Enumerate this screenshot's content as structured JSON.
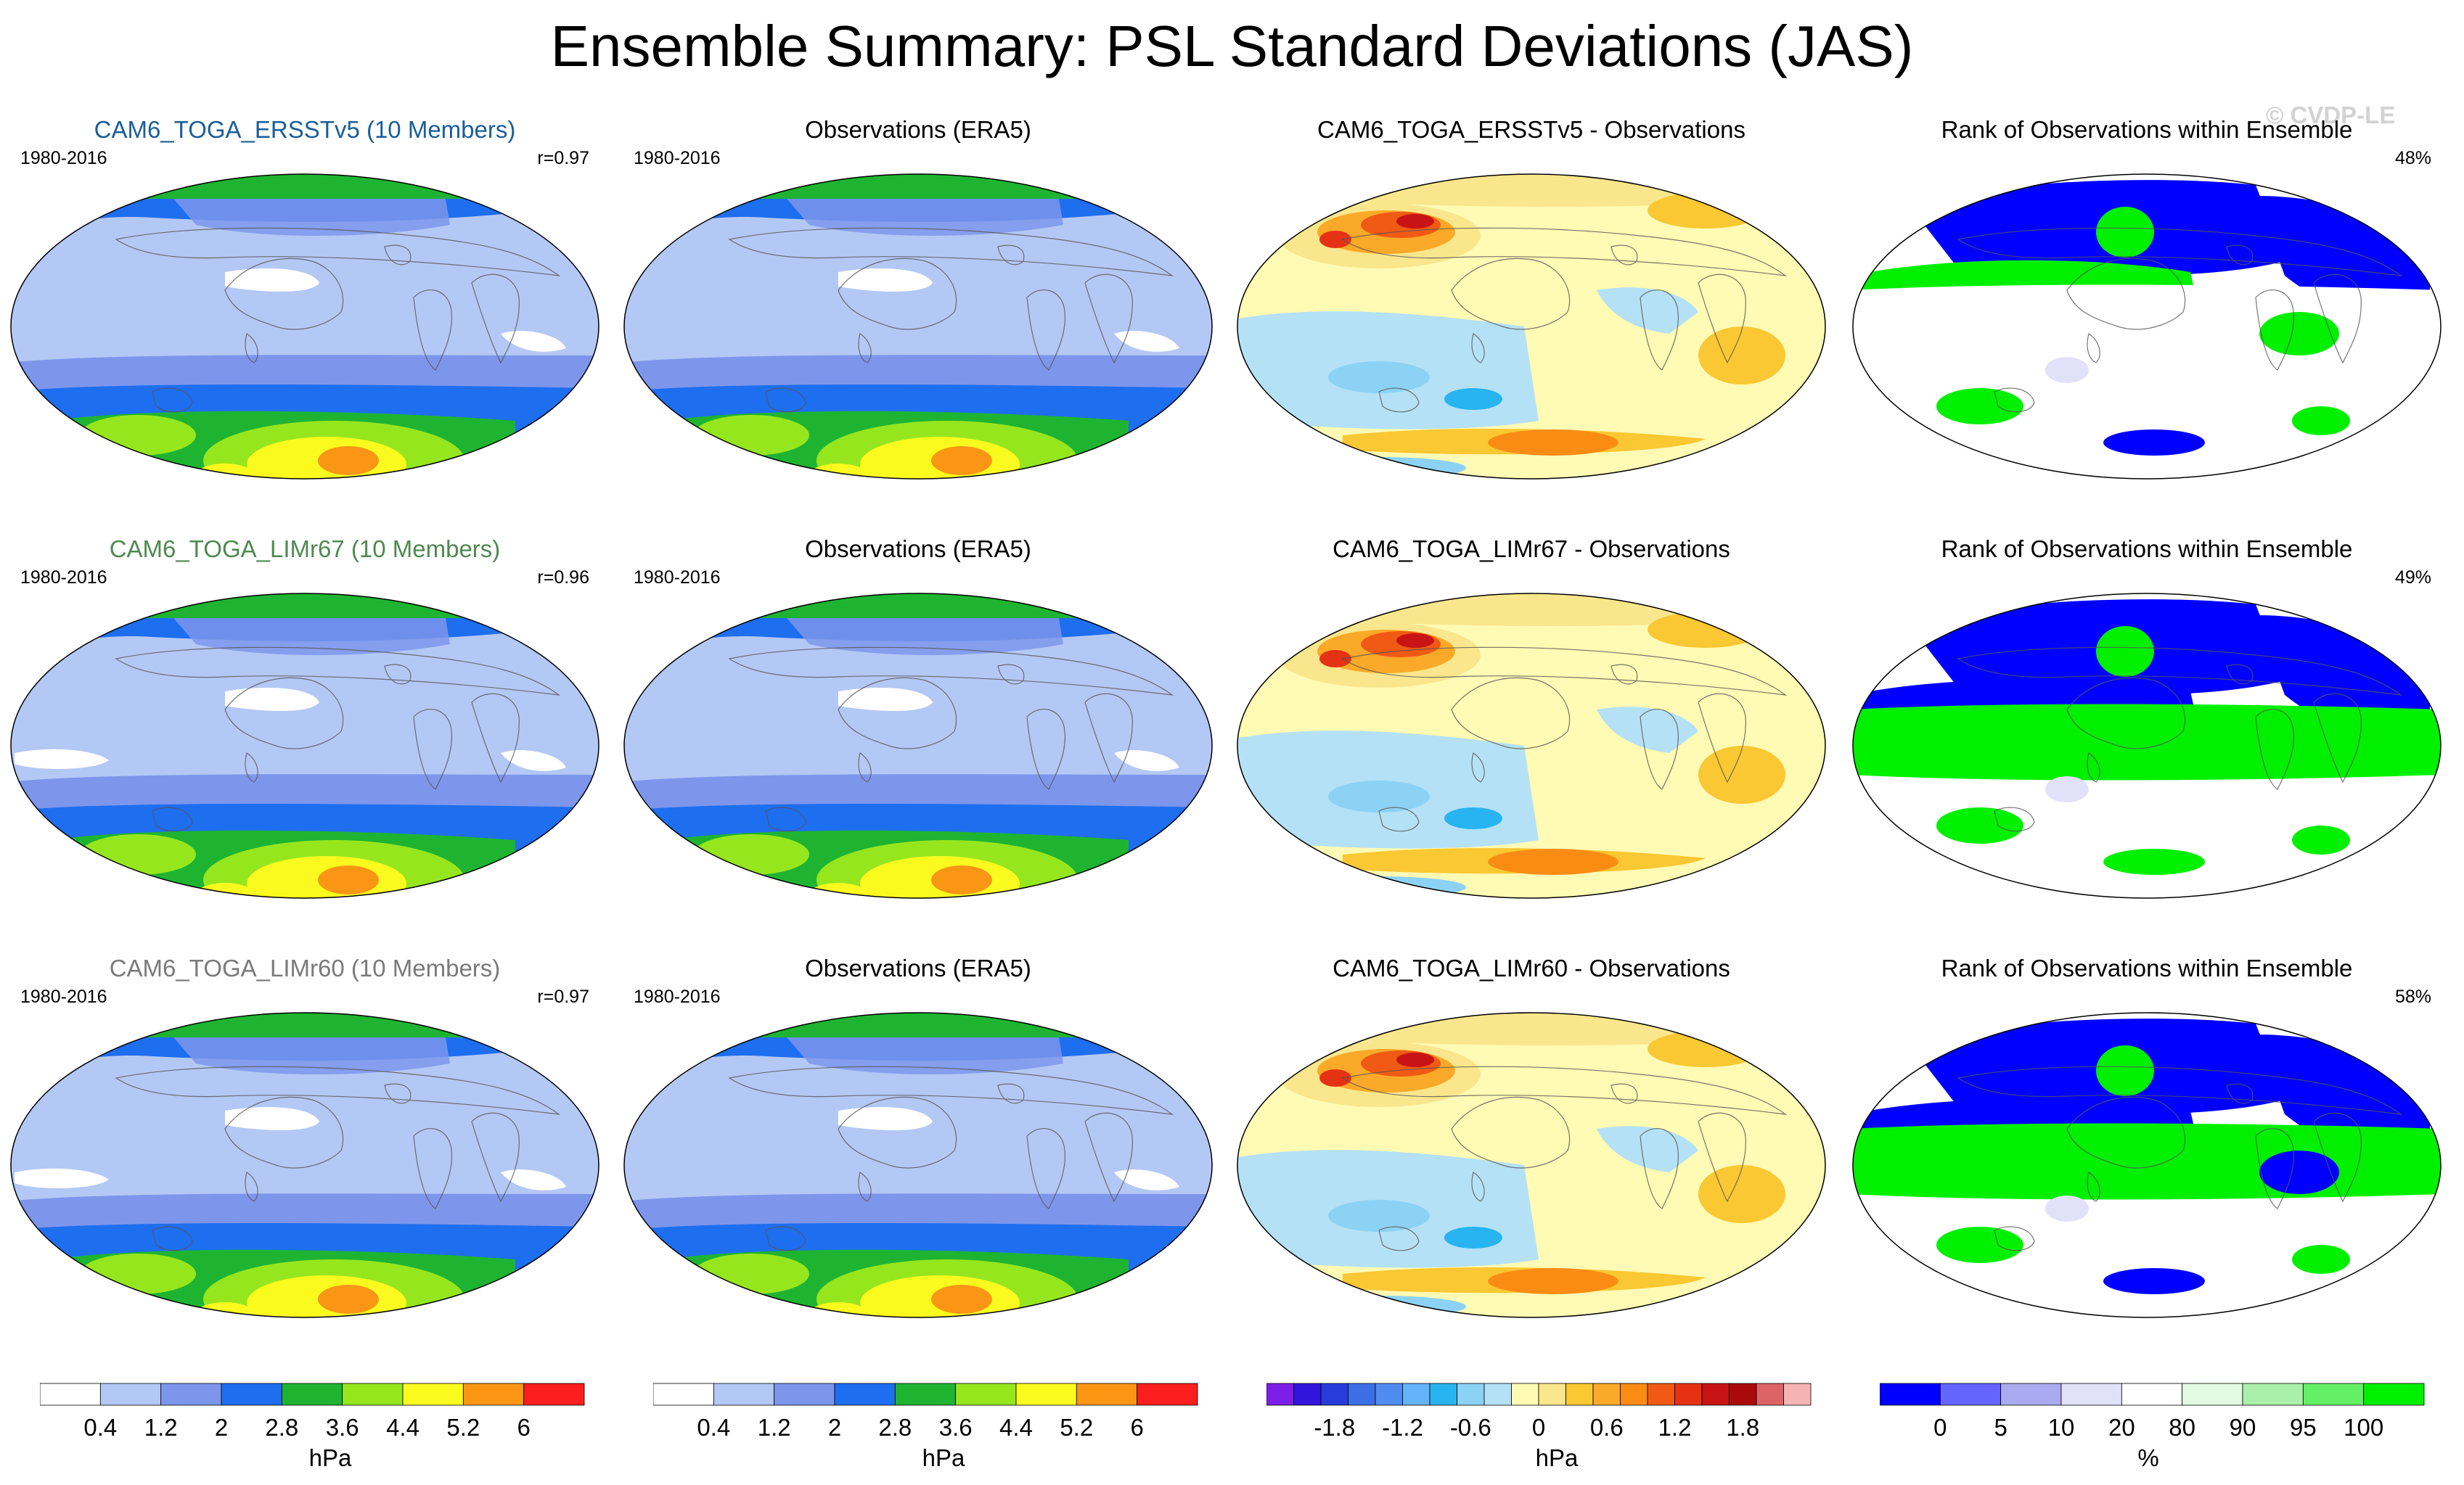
{
  "figure": {
    "title": "Ensemble Summary: PSL Standard Deviations (JAS)",
    "watermark": "© CVDP-LE"
  },
  "rows": [
    {
      "model": {
        "title": "CAM6_TOGA_ERSSTv5 (10 Members)",
        "title_color": "#1a5e9a",
        "period": "1980-2016",
        "r": "r=0.97"
      },
      "obs": {
        "title": "Observations (ERA5)",
        "period": "1980-2016"
      },
      "diff": {
        "title": "CAM6_TOGA_ERSSTv5 - Observations"
      },
      "rank": {
        "title": "Rank of Observations within Ensemble",
        "percent": "48%"
      }
    },
    {
      "model": {
        "title": "CAM6_TOGA_LIMr67 (10 Members)",
        "title_color": "#4e8a50",
        "period": "1980-2016",
        "r": "r=0.96"
      },
      "obs": {
        "title": "Observations (ERA5)",
        "period": "1980-2016"
      },
      "diff": {
        "title": "CAM6_TOGA_LIMr67 - Observations"
      },
      "rank": {
        "title": "Rank of Observations within Ensemble",
        "percent": "49%"
      }
    },
    {
      "model": {
        "title": "CAM6_TOGA_LIMr60 (10 Members)",
        "title_color": "#7a7a7a",
        "period": "1980-2016",
        "r": "r=0.97"
      },
      "obs": {
        "title": "Observations (ERA5)",
        "period": "1980-2016"
      },
      "diff": {
        "title": "CAM6_TOGA_LIMr60 - Observations"
      },
      "rank": {
        "title": "Rank of Observations within Ensemble",
        "percent": "58%"
      }
    }
  ],
  "colorbars": [
    {
      "unit": "hPa",
      "colors": [
        "#ffffff",
        "#b4c8f5",
        "#7d96eb",
        "#1e6ef0",
        "#1eb432",
        "#96e61e",
        "#fafa1e",
        "#fa9614",
        "#fa1e1e"
      ],
      "ticks": [
        "0.4",
        "1.2",
        "2",
        "2.8",
        "3.6",
        "4.4",
        "5.2",
        "6"
      ]
    },
    {
      "unit": "hPa",
      "colors": [
        "#ffffff",
        "#b4c8f5",
        "#7d96eb",
        "#1e6ef0",
        "#1eb432",
        "#96e61e",
        "#fafa1e",
        "#fa9614",
        "#fa1e1e"
      ],
      "ticks": [
        "0.4",
        "1.2",
        "2",
        "2.8",
        "3.6",
        "4.4",
        "5.2",
        "6"
      ]
    },
    {
      "unit": "hPa",
      "colors": [
        "#7d1ee6",
        "#3214dc",
        "#283cdc",
        "#3c6ee6",
        "#508cf0",
        "#64b4fa",
        "#28b4f0",
        "#8cd2f5",
        "#b4e1f5",
        "#fffab4",
        "#fae68c",
        "#fac832",
        "#faaa28",
        "#fa8c14",
        "#f05a14",
        "#e63214",
        "#c81414",
        "#aa0a0a",
        "#dc6464",
        "#f5b4b4"
      ],
      "ticks": [
        "-1.8",
        "-1.2",
        "-0.6",
        "0",
        "0.6",
        "1.2",
        "1.8"
      ]
    },
    {
      "unit": "%",
      "colors": [
        "#0000ff",
        "#6464ff",
        "#aaaaf0",
        "#e1e1fa",
        "#ffffff",
        "#e1fae1",
        "#aaf0aa",
        "#64f064",
        "#00f000"
      ],
      "ticks": [
        "0",
        "5",
        "10",
        "20",
        "80",
        "90",
        "95",
        "100"
      ]
    }
  ],
  "chart_data": {
    "type": "heatmap",
    "title": "Ensemble Summary: PSL Standard Deviations (JAS)",
    "variable": "PSL standard deviation",
    "season": "JAS",
    "period": "1980-2016",
    "unit": "hPa",
    "panels": [
      {
        "row": 1,
        "col": "model",
        "name": "CAM6_TOGA_ERSSTv5 (10 Members)",
        "pattern_correlation": 0.97
      },
      {
        "row": 1,
        "col": "obs",
        "name": "Observations (ERA5)"
      },
      {
        "row": 1,
        "col": "diff",
        "name": "CAM6_TOGA_ERSSTv5 - Observations"
      },
      {
        "row": 1,
        "col": "rank",
        "name": "Rank of Observations within Ensemble",
        "percent": 48
      },
      {
        "row": 2,
        "col": "model",
        "name": "CAM6_TOGA_LIMr67 (10 Members)",
        "pattern_correlation": 0.96
      },
      {
        "row": 2,
        "col": "obs",
        "name": "Observations (ERA5)"
      },
      {
        "row": 2,
        "col": "diff",
        "name": "CAM6_TOGA_LIMr67 - Observations"
      },
      {
        "row": 2,
        "col": "rank",
        "name": "Rank of Observations within Ensemble",
        "percent": 49
      },
      {
        "row": 3,
        "col": "model",
        "name": "CAM6_TOGA_LIMr60 (10 Members)",
        "pattern_correlation": 0.97
      },
      {
        "row": 3,
        "col": "obs",
        "name": "Observations (ERA5)"
      },
      {
        "row": 3,
        "col": "diff",
        "name": "CAM6_TOGA_LIMr60 - Observations"
      },
      {
        "row": 3,
        "col": "rank",
        "name": "Rank of Observations within Ensemble",
        "percent": 58
      }
    ],
    "std_levels": [
      0.4,
      1.2,
      2,
      2.8,
      3.6,
      4.4,
      5.2,
      6
    ],
    "diff_levels": [
      -1.8,
      -1.2,
      -0.6,
      0,
      0.6,
      1.2,
      1.8
    ],
    "rank_levels": [
      0,
      5,
      10,
      20,
      80,
      90,
      95,
      100
    ]
  }
}
